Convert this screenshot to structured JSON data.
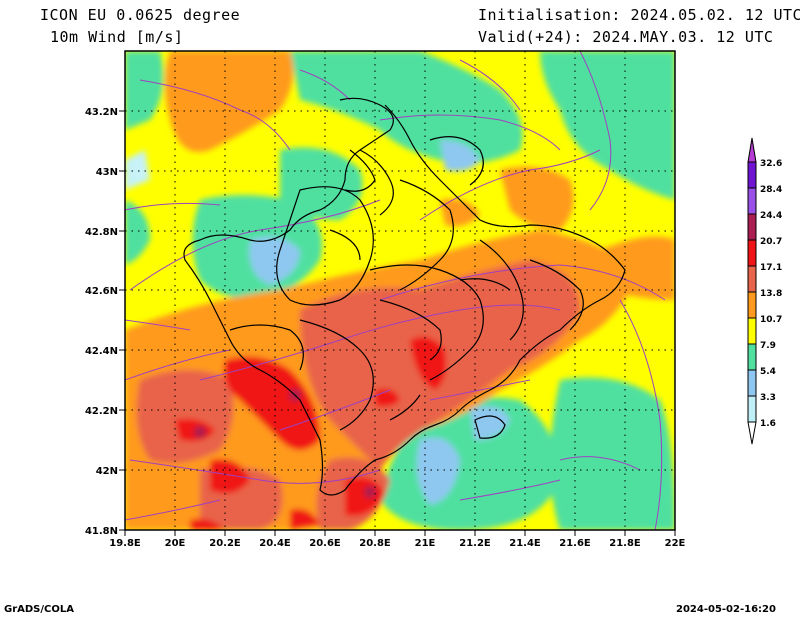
{
  "header": {
    "model": "ICON EU 0.0625 degree",
    "variable": "10m Wind [m/s]",
    "init": "Initialisation: 2024.05.02. 12 UTC",
    "valid": "Valid(+24): 2024.MAY.03. 12 UTC"
  },
  "footer": {
    "credit": "GrADS/COLA",
    "timestamp": "2024-05-02-16:20"
  },
  "map": {
    "lon_ticks": [
      "19.8E",
      "20E",
      "20.2E",
      "20.4E",
      "20.6E",
      "20.8E",
      "21E",
      "21.2E",
      "21.4E",
      "21.6E",
      "21.8E",
      "22E"
    ],
    "lat_ticks": [
      "41.8N",
      "42N",
      "42.2N",
      "42.4N",
      "42.6N",
      "42.8N",
      "43N",
      "43.2N"
    ],
    "grid": true
  },
  "colorbar": {
    "levels": [
      "1.6",
      "3.3",
      "5.4",
      "7.9",
      "10.7",
      "13.8",
      "17.1",
      "20.7",
      "24.4",
      "28.4",
      "32.6"
    ],
    "colors": [
      "#ffffff",
      "#bff0f7",
      "#8ec8f0",
      "#50e0a0",
      "#ffff00",
      "#ff9a1e",
      "#e8644a",
      "#f01414",
      "#aa1e50",
      "#9a50e8",
      "#6e14d2",
      "#b43cd2"
    ]
  },
  "field_colors": {
    "cyan": "#c6f2f8",
    "blue": "#8ec8f0",
    "green": "#50e0a0",
    "yellow": "#ffff00",
    "orange": "#ff9a1e",
    "salmon": "#e8644a",
    "red": "#f01414",
    "maroon": "#aa1e50",
    "streamline": "#a040c0",
    "border": "#000000"
  }
}
